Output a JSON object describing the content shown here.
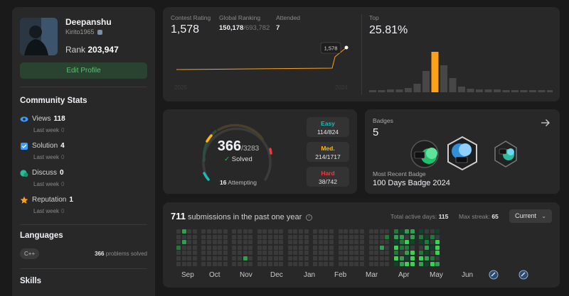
{
  "profile": {
    "name": "Deepanshu",
    "handle": "Kirito1965",
    "rank_label": "Rank",
    "rank_value": "203,947",
    "edit_label": "Edit Profile"
  },
  "community": {
    "title": "Community Stats",
    "items": [
      {
        "label": "Views",
        "value": "118",
        "week_label": "Last week",
        "week_value": "0",
        "icon": "eye-icon",
        "color": "#3d9bff"
      },
      {
        "label": "Solution",
        "value": "4",
        "week_label": "Last week",
        "week_value": "0",
        "icon": "checkbox-icon",
        "color": "#3d9bff"
      },
      {
        "label": "Discuss",
        "value": "0",
        "week_label": "Last week",
        "week_value": "0",
        "icon": "chat-icon",
        "color": "#2cbb9a"
      },
      {
        "label": "Reputation",
        "value": "1",
        "week_label": "Last week",
        "week_value": "0",
        "icon": "star-icon",
        "color": "#ffa116"
      }
    ]
  },
  "languages": {
    "title": "Languages",
    "name": "C++",
    "count": "366",
    "count_suffix": "problems solved"
  },
  "skills": {
    "title": "Skills"
  },
  "contest": {
    "rating_label": "Contest Rating",
    "rating_value": "1,578",
    "global_label": "Global Ranking",
    "global_value": "150,178",
    "global_total": "/693,782",
    "attended_label": "Attended",
    "attended_value": "7",
    "tooltip": "1,578",
    "year_start": "2025",
    "year_end": "2024",
    "top_label": "Top",
    "top_value": "25.81%",
    "accent": "#ffa116"
  },
  "problems": {
    "solved": "366",
    "total": "/3283",
    "solved_label": "Solved",
    "attempting_count": "16",
    "attempting_label": "Attempting",
    "easy_label": "Easy",
    "easy_value": "114/824",
    "easy_color": "#1cbaba",
    "med_label": "Med.",
    "med_value": "214/1717",
    "med_color": "#ffb700",
    "hard_label": "Hard",
    "hard_value": "38/742",
    "hard_color": "#f63737"
  },
  "badges": {
    "label": "Badges",
    "count": "5",
    "recent_label": "Most Recent Badge",
    "recent_name": "100 Days Badge 2024"
  },
  "heatmap": {
    "count": "711",
    "title_suffix": "submissions in the past one year",
    "active_label": "Total active days:",
    "active_value": "115",
    "streak_label": "Max streak:",
    "streak_value": "65",
    "selector": "Current",
    "months": [
      "Sep",
      "Oct",
      "Nov",
      "Dec",
      "Jan",
      "Feb",
      "Mar",
      "Apr",
      "May",
      "Jun"
    ]
  }
}
